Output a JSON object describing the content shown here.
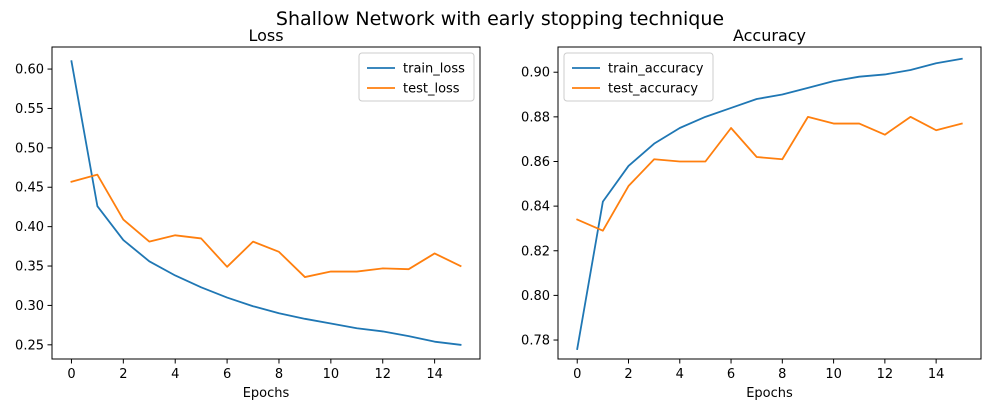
{
  "suptitle": "Shallow Network with early stopping technique",
  "chart_data": [
    {
      "type": "line",
      "title": "Loss",
      "xlabel": "Epochs",
      "ylabel": "",
      "xlim": [
        -0.75,
        15.75
      ],
      "ylim": [
        0.232,
        0.628
      ],
      "xticks": [
        0,
        2,
        4,
        6,
        8,
        10,
        12,
        14
      ],
      "yticks": [
        0.25,
        0.3,
        0.35,
        0.4,
        0.45,
        0.5,
        0.55,
        0.6
      ],
      "ytick_labels": [
        "0.25",
        "0.30",
        "0.35",
        "0.40",
        "0.45",
        "0.50",
        "0.55",
        "0.60"
      ],
      "legend_position": "top-right",
      "grid": false,
      "x": [
        0,
        1,
        2,
        3,
        4,
        5,
        6,
        7,
        8,
        9,
        10,
        11,
        12,
        13,
        14,
        15
      ],
      "series": [
        {
          "name": "train_loss",
          "color": "#1f77b4",
          "values": [
            0.61,
            0.426,
            0.383,
            0.356,
            0.338,
            0.323,
            0.31,
            0.299,
            0.29,
            0.283,
            0.277,
            0.271,
            0.267,
            0.261,
            0.254,
            0.25
          ]
        },
        {
          "name": "test_loss",
          "color": "#ff7f0e",
          "values": [
            0.457,
            0.466,
            0.409,
            0.381,
            0.389,
            0.385,
            0.349,
            0.381,
            0.368,
            0.336,
            0.343,
            0.343,
            0.347,
            0.346,
            0.366,
            0.35
          ]
        }
      ]
    },
    {
      "type": "line",
      "title": "Accuracy",
      "xlabel": "Epochs",
      "ylabel": "",
      "xlim": [
        -0.75,
        15.75
      ],
      "ylim": [
        0.7715,
        0.9113
      ],
      "xticks": [
        0,
        2,
        4,
        6,
        8,
        10,
        12,
        14
      ],
      "yticks": [
        0.78,
        0.8,
        0.82,
        0.84,
        0.86,
        0.88,
        0.9
      ],
      "ytick_labels": [
        "0.78",
        "0.80",
        "0.82",
        "0.84",
        "0.86",
        "0.88",
        "0.90"
      ],
      "legend_position": "top-left",
      "grid": false,
      "x": [
        0,
        1,
        2,
        3,
        4,
        5,
        6,
        7,
        8,
        9,
        10,
        11,
        12,
        13,
        14,
        15
      ],
      "series": [
        {
          "name": "train_accuracy",
          "color": "#1f77b4",
          "values": [
            0.776,
            0.842,
            0.858,
            0.868,
            0.875,
            0.88,
            0.884,
            0.888,
            0.89,
            0.893,
            0.896,
            0.898,
            0.899,
            0.901,
            0.904,
            0.906
          ]
        },
        {
          "name": "test_accuracy",
          "color": "#ff7f0e",
          "values": [
            0.834,
            0.829,
            0.849,
            0.861,
            0.86,
            0.86,
            0.875,
            0.862,
            0.861,
            0.88,
            0.877,
            0.877,
            0.872,
            0.88,
            0.874,
            0.877
          ]
        }
      ]
    }
  ]
}
